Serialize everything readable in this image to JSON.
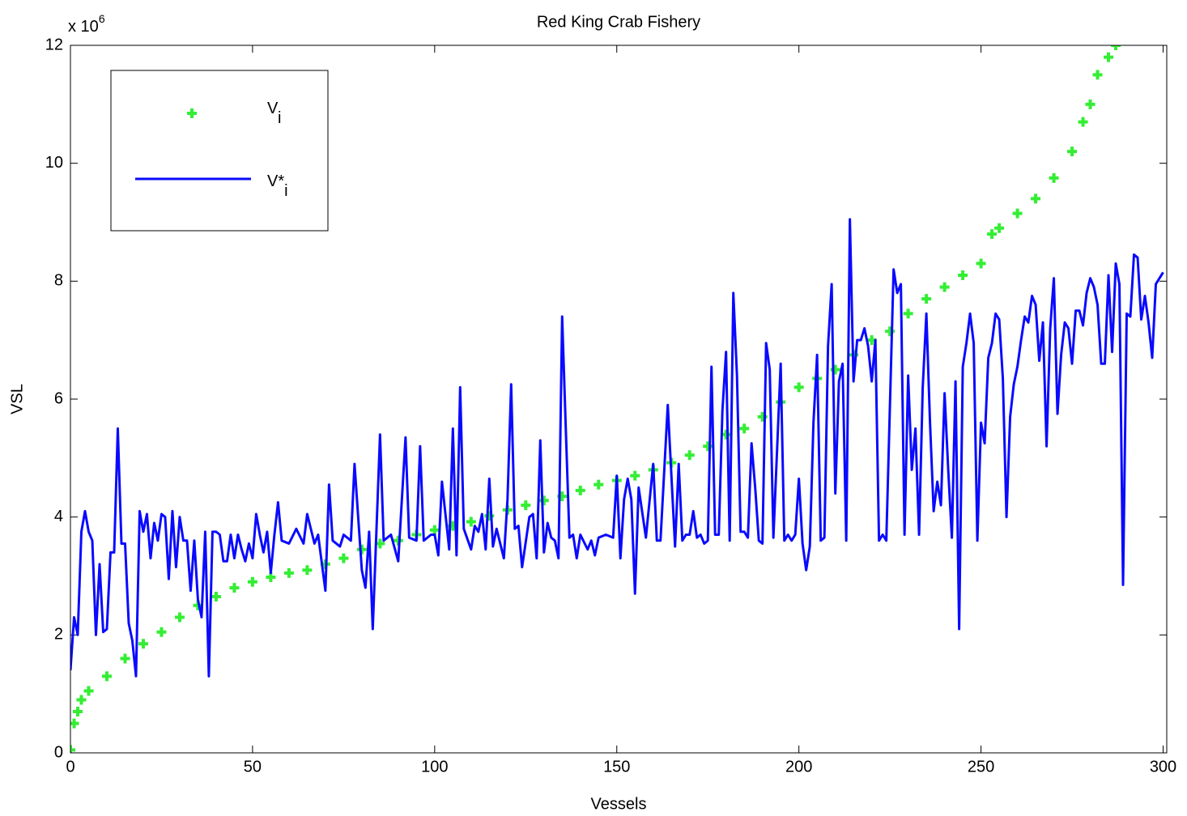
{
  "chart_data": {
    "type": "scatter-line",
    "title": "Red King Crab Fishery",
    "x_label": "Vessels",
    "y_label": "VSL",
    "y_multiplier": {
      "base": "x 10",
      "exponent": "6"
    },
    "xlim": [
      0,
      301
    ],
    "ylim": [
      0,
      12
    ],
    "xticks": [
      0,
      50,
      100,
      150,
      200,
      250,
      300
    ],
    "yticks": [
      0,
      2,
      4,
      6,
      8,
      10,
      12
    ],
    "grid": false,
    "legend": "upper left",
    "series": [
      {
        "name": "V",
        "subscript": "i",
        "kind": "scatter",
        "color": "#33ee33",
        "x": [
          0,
          1,
          2,
          3,
          5,
          10,
          15,
          20,
          25,
          30,
          35,
          40,
          45,
          50,
          55,
          60,
          65,
          70,
          75,
          80,
          85,
          90,
          95,
          100,
          105,
          110,
          115,
          120,
          125,
          130,
          135,
          140,
          145,
          150,
          155,
          160,
          165,
          170,
          175,
          180,
          185,
          190,
          195,
          200,
          205,
          210,
          215,
          220,
          225,
          230,
          235,
          240,
          245,
          250,
          253,
          255,
          260,
          265,
          270,
          275,
          278,
          280,
          282,
          285,
          287
        ],
        "values": [
          0.05,
          0.5,
          0.7,
          0.9,
          1.05,
          1.3,
          1.6,
          1.85,
          2.05,
          2.3,
          2.5,
          2.65,
          2.8,
          2.9,
          2.98,
          3.05,
          3.1,
          3.2,
          3.3,
          3.45,
          3.55,
          3.6,
          3.7,
          3.78,
          3.85,
          3.92,
          4.02,
          4.12,
          4.2,
          4.28,
          4.35,
          4.45,
          4.55,
          4.62,
          4.7,
          4.8,
          4.92,
          5.05,
          5.2,
          5.4,
          5.5,
          5.7,
          5.95,
          6.2,
          6.35,
          6.5,
          6.75,
          7.0,
          7.15,
          7.45,
          7.7,
          7.9,
          8.1,
          8.3,
          8.8,
          8.9,
          9.15,
          9.4,
          9.75,
          10.2,
          10.7,
          11.0,
          11.5,
          11.8,
          12.0
        ]
      },
      {
        "name": "V*",
        "subscript": "i",
        "kind": "line",
        "color": "#0a0aff",
        "x": [
          0,
          1,
          2,
          3,
          4,
          5,
          6,
          7,
          8,
          9,
          10,
          11,
          12,
          13,
          14,
          15,
          16,
          17,
          18,
          19,
          20,
          21,
          22,
          23,
          24,
          25,
          26,
          27,
          28,
          29,
          30,
          31,
          32,
          33,
          34,
          35,
          36,
          37,
          38,
          39,
          40,
          41,
          42,
          43,
          44,
          45,
          46,
          47,
          48,
          49,
          50,
          51,
          52,
          53,
          54,
          55,
          56,
          57,
          58,
          60,
          62,
          64,
          65,
          67,
          68,
          70,
          71,
          72,
          74,
          75,
          77,
          78,
          80,
          81,
          82,
          83,
          85,
          86,
          88,
          90,
          92,
          93,
          95,
          96,
          97,
          99,
          100,
          101,
          102,
          104,
          105,
          106,
          107,
          108,
          110,
          111,
          112,
          113,
          114,
          115,
          116,
          117,
          119,
          120,
          121,
          122,
          123,
          124,
          126,
          127,
          128,
          129,
          130,
          131,
          132,
          133,
          134,
          135,
          136,
          137,
          138,
          139,
          140,
          142,
          143,
          144,
          145,
          147,
          149,
          150,
          151,
          152,
          153,
          154,
          155,
          156,
          158,
          160,
          161,
          162,
          164,
          166,
          167,
          168,
          169,
          170,
          171,
          172,
          173,
          174,
          175,
          176,
          177,
          178,
          179,
          180,
          181,
          182,
          183,
          184,
          185,
          186,
          187,
          188,
          189,
          190,
          191,
          192,
          193,
          195,
          196,
          197,
          198,
          199,
          200,
          201,
          202,
          203,
          204,
          205,
          206,
          207,
          208,
          209,
          210,
          211,
          212,
          213,
          214,
          215,
          216,
          217,
          218,
          219,
          220,
          221,
          222,
          223,
          224,
          226,
          227,
          228,
          229,
          230,
          231,
          232,
          233,
          234,
          235,
          236,
          237,
          238,
          239,
          240,
          241,
          242,
          243,
          244,
          245,
          246,
          247,
          248,
          249,
          250,
          251,
          252,
          253,
          254,
          255,
          256,
          257,
          258,
          259,
          260,
          261,
          262,
          263,
          264,
          265,
          266,
          267,
          268,
          269,
          270,
          271,
          272,
          273,
          274,
          275,
          276,
          277,
          278,
          279,
          280,
          281,
          282,
          283,
          284,
          285,
          286,
          287,
          288,
          289,
          290,
          291,
          292,
          293,
          294,
          295,
          296,
          297,
          298,
          299,
          300
        ],
        "values": [
          1.4,
          2.3,
          2.0,
          3.75,
          4.1,
          3.75,
          3.6,
          2.0,
          3.2,
          2.05,
          2.1,
          3.4,
          3.4,
          5.5,
          3.55,
          3.55,
          2.2,
          1.9,
          1.3,
          4.1,
          3.75,
          4.05,
          3.3,
          3.9,
          3.6,
          4.05,
          4.0,
          2.95,
          4.1,
          3.15,
          4.0,
          3.6,
          3.6,
          2.75,
          3.6,
          2.6,
          2.3,
          3.75,
          1.3,
          3.75,
          3.75,
          3.7,
          3.25,
          3.25,
          3.7,
          3.3,
          3.7,
          3.45,
          3.25,
          3.55,
          3.3,
          4.05,
          3.7,
          3.4,
          3.75,
          3.05,
          3.7,
          4.25,
          3.6,
          3.55,
          3.8,
          3.55,
          4.05,
          3.55,
          3.7,
          2.75,
          4.55,
          3.6,
          3.5,
          3.7,
          3.6,
          4.9,
          3.1,
          2.8,
          3.75,
          2.1,
          5.4,
          3.6,
          3.7,
          3.25,
          5.35,
          3.65,
          3.6,
          5.2,
          3.6,
          3.7,
          3.7,
          3.35,
          4.6,
          3.45,
          5.5,
          3.35,
          6.2,
          3.8,
          3.45,
          3.85,
          3.75,
          4.05,
          3.45,
          4.65,
          3.5,
          3.8,
          3.3,
          4.3,
          6.25,
          3.8,
          3.85,
          3.15,
          4.0,
          4.05,
          3.3,
          5.3,
          3.4,
          3.9,
          3.65,
          3.6,
          3.3,
          7.4,
          5.5,
          3.65,
          3.7,
          3.3,
          3.7,
          3.45,
          3.6,
          3.35,
          3.65,
          3.7,
          3.65,
          4.7,
          3.3,
          4.3,
          4.65,
          4.3,
          2.7,
          4.5,
          3.65,
          4.9,
          3.6,
          3.6,
          5.9,
          3.5,
          4.9,
          3.6,
          3.7,
          3.7,
          4.1,
          3.65,
          3.7,
          3.55,
          3.6,
          6.55,
          3.7,
          3.7,
          5.8,
          6.8,
          3.6,
          7.8,
          6.4,
          3.75,
          3.75,
          3.65,
          5.25,
          4.5,
          3.6,
          3.55,
          6.95,
          6.5,
          3.65,
          6.6,
          3.6,
          3.7,
          3.6,
          3.7,
          4.65,
          3.55,
          3.1,
          3.5,
          5.6,
          6.75,
          3.6,
          3.65,
          6.9,
          7.95,
          4.4,
          6.3,
          6.6,
          3.6,
          9.05,
          6.3,
          7.0,
          7.0,
          7.2,
          6.9,
          6.3,
          7.0,
          3.6,
          3.7,
          3.6,
          8.2,
          7.8,
          7.95,
          3.7,
          6.4,
          4.8,
          5.5,
          3.7,
          6.2,
          7.45,
          5.6,
          4.1,
          4.6,
          4.2,
          6.1,
          4.8,
          3.65,
          6.3,
          2.1,
          6.55,
          6.95,
          7.45,
          6.95,
          3.6,
          5.6,
          5.25,
          6.7,
          6.95,
          7.45,
          7.35,
          6.35,
          4.0,
          5.7,
          6.25,
          6.55,
          7.0,
          7.4,
          7.3,
          7.75,
          7.6,
          6.65,
          7.3,
          5.2,
          7.2,
          8.05,
          5.75,
          6.75,
          7.3,
          7.2,
          6.6,
          7.5,
          7.5,
          7.25,
          7.8,
          8.05,
          7.9,
          7.6,
          6.6,
          6.6,
          8.1,
          6.8,
          8.3,
          7.95,
          2.85,
          7.45,
          7.4,
          8.45,
          8.4,
          7.35,
          7.75,
          7.3,
          6.7,
          7.95,
          8.05,
          8.15
        ]
      }
    ]
  }
}
